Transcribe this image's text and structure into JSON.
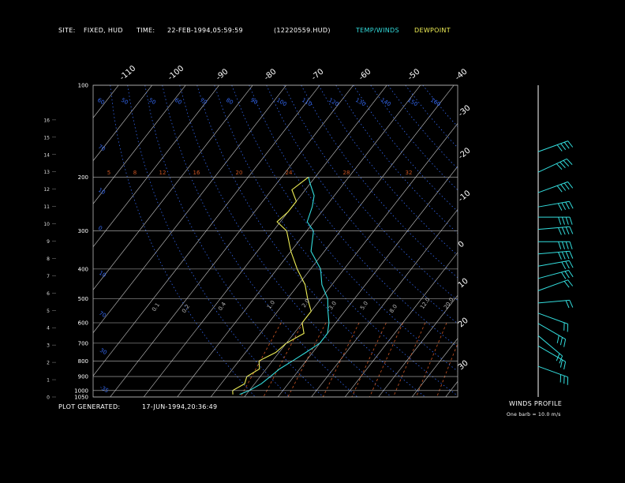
{
  "header": {
    "site_label": "SITE:",
    "site_value": "FIXED, HUD",
    "time_label": "TIME:",
    "time_value": "22-FEB-1994,05:59:59",
    "file_id": "(12220559.HUD)",
    "legend_temp": "TEMP/WINDS",
    "legend_dew": "DEWPOINT"
  },
  "footer": {
    "generated_label": "PLOT GENERATED:",
    "generated_value": "17-JUN-1994,20:36:49"
  },
  "winds_panel": {
    "title": "WINDS PROFILE",
    "note": "One barb = 10.0 m/s"
  },
  "colors": {
    "temp": "#33dddd",
    "dewpoint": "#eeee55",
    "isobar": "#bbbbbb",
    "isotherm": "#cccccc",
    "dry_adiabat": "#3366ee",
    "mixing_ratio": "#cc5522",
    "winds": "#33dddd",
    "panel_axis": "#ffffff"
  },
  "chart_data": {
    "type": "line",
    "pressure_levels": [
      100,
      200,
      300,
      400,
      500,
      600,
      700,
      800,
      900,
      1000,
      1050
    ],
    "height_ticks": [
      "0",
      "1",
      "2",
      "3",
      "4",
      "5",
      "6",
      "7",
      "8",
      "9",
      "10",
      "11",
      "12",
      "13",
      "14",
      "15",
      "16"
    ],
    "top_isotherm_labels": [
      "-110",
      "-100",
      "-90",
      "-80",
      "-70",
      "-60",
      "-50",
      "-40"
    ],
    "right_isotherm_labels": [
      "-30",
      "-20",
      "-10",
      "0",
      "10",
      "20",
      "30"
    ],
    "dry_adiabat_labels_top": [
      "60",
      "50",
      "40",
      "30",
      "20",
      "10",
      "0",
      "-10",
      "-20",
      "-30",
      "-40"
    ],
    "dry_adiabat_labels_left": [
      "70",
      "60",
      "50",
      "40",
      "30",
      "20",
      "10",
      "0"
    ],
    "mixing_ratio_labels": [
      "5",
      "8",
      "12",
      "16",
      "20",
      "24",
      "28",
      "32"
    ],
    "lower_labels": [
      "0.1",
      "0.2",
      "0.4",
      "1.0",
      "2.0",
      "3.0",
      "5.0",
      "8.0",
      "12.0",
      "20.0"
    ],
    "series": [
      {
        "name": "TEMP/WINDS",
        "points": [
          [
            1030,
            -42
          ],
          [
            1000,
            -40
          ],
          [
            950,
            -38
          ],
          [
            900,
            -37
          ],
          [
            850,
            -36
          ],
          [
            800,
            -34
          ],
          [
            750,
            -32
          ],
          [
            700,
            -30
          ],
          [
            650,
            -30
          ],
          [
            600,
            -32
          ],
          [
            550,
            -35
          ],
          [
            500,
            -38
          ],
          [
            450,
            -43
          ],
          [
            400,
            -47
          ],
          [
            350,
            -54
          ],
          [
            300,
            -58
          ],
          [
            280,
            -62
          ],
          [
            250,
            -64
          ],
          [
            230,
            -66
          ],
          [
            210,
            -70
          ],
          [
            200,
            -72
          ]
        ]
      },
      {
        "name": "DEWPOINT",
        "points": [
          [
            1030,
            -44
          ],
          [
            1000,
            -45
          ],
          [
            950,
            -43
          ],
          [
            900,
            -44
          ],
          [
            850,
            -42
          ],
          [
            800,
            -44
          ],
          [
            750,
            -41
          ],
          [
            700,
            -40
          ],
          [
            650,
            -37
          ],
          [
            600,
            -40
          ],
          [
            550,
            -40
          ],
          [
            500,
            -44
          ],
          [
            450,
            -48
          ],
          [
            400,
            -54
          ],
          [
            350,
            -60
          ],
          [
            300,
            -66
          ],
          [
            280,
            -71
          ],
          [
            260,
            -70
          ],
          [
            240,
            -70
          ],
          [
            220,
            -74
          ],
          [
            200,
            -72
          ]
        ]
      }
    ],
    "winds": [
      {
        "height_km": 12,
        "speed": 40,
        "dir_deg": 250
      },
      {
        "height_km": 11,
        "speed": 40,
        "dir_deg": 245
      },
      {
        "height_km": 10,
        "speed": 40,
        "dir_deg": 250
      },
      {
        "height_km": 9.3,
        "speed": 40,
        "dir_deg": 260
      },
      {
        "height_km": 8.8,
        "speed": 40,
        "dir_deg": 270
      },
      {
        "height_km": 8.2,
        "speed": 40,
        "dir_deg": 265
      },
      {
        "height_km": 7.6,
        "speed": 40,
        "dir_deg": 270
      },
      {
        "height_km": 7.0,
        "speed": 40,
        "dir_deg": 265
      },
      {
        "height_km": 6.4,
        "speed": 30,
        "dir_deg": 260
      },
      {
        "height_km": 5.8,
        "speed": 30,
        "dir_deg": 255
      },
      {
        "height_km": 5.2,
        "speed": 20,
        "dir_deg": 250
      },
      {
        "height_km": 4.6,
        "speed": 20,
        "dir_deg": 265
      },
      {
        "height_km": 4.1,
        "speed": 20,
        "dir_deg": 290
      },
      {
        "height_km": 3.6,
        "speed": 30,
        "dir_deg": 300
      },
      {
        "height_km": 3.0,
        "speed": 20,
        "dir_deg": 310
      },
      {
        "height_km": 2.5,
        "speed": 20,
        "dir_deg": 300
      },
      {
        "height_km": 1.5,
        "speed": 30,
        "dir_deg": 290
      }
    ]
  }
}
